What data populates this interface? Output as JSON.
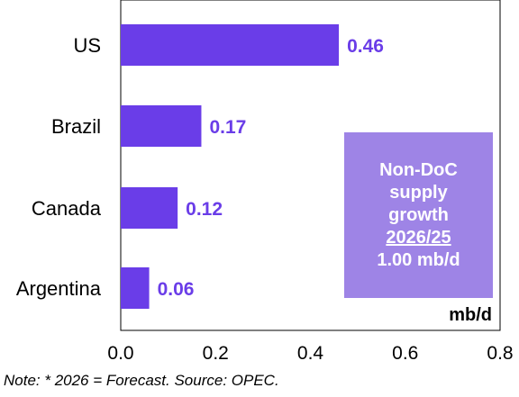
{
  "colors": {
    "bar": "#6a3de8",
    "value_text": "#6a3de8",
    "callout_bg": "#9e84e6",
    "callout_text": "#ffffff",
    "axis": "#000000"
  },
  "chart_data": {
    "type": "bar",
    "orientation": "horizontal",
    "categories": [
      "US",
      "Brazil",
      "Canada",
      "Argentina"
    ],
    "values": [
      0.46,
      0.17,
      0.12,
      0.06
    ],
    "value_labels": [
      "0.46",
      "0.17",
      "0.12",
      "0.06"
    ],
    "xlim": [
      0.0,
      0.8
    ],
    "x_ticks": [
      0.0,
      0.2,
      0.4,
      0.6,
      0.8
    ],
    "x_tick_labels": [
      "0.0",
      "0.2",
      "0.4",
      "0.6",
      "0.8"
    ],
    "unit_label": "mb/d",
    "grid": false,
    "legend": "none"
  },
  "callout": {
    "line1": "Non-DoC",
    "line2": "supply",
    "line3": "growth",
    "line4": "2026/25",
    "line5": "1.00 mb/d"
  },
  "note": "Note: * 2026 = Forecast. Source: OPEC."
}
